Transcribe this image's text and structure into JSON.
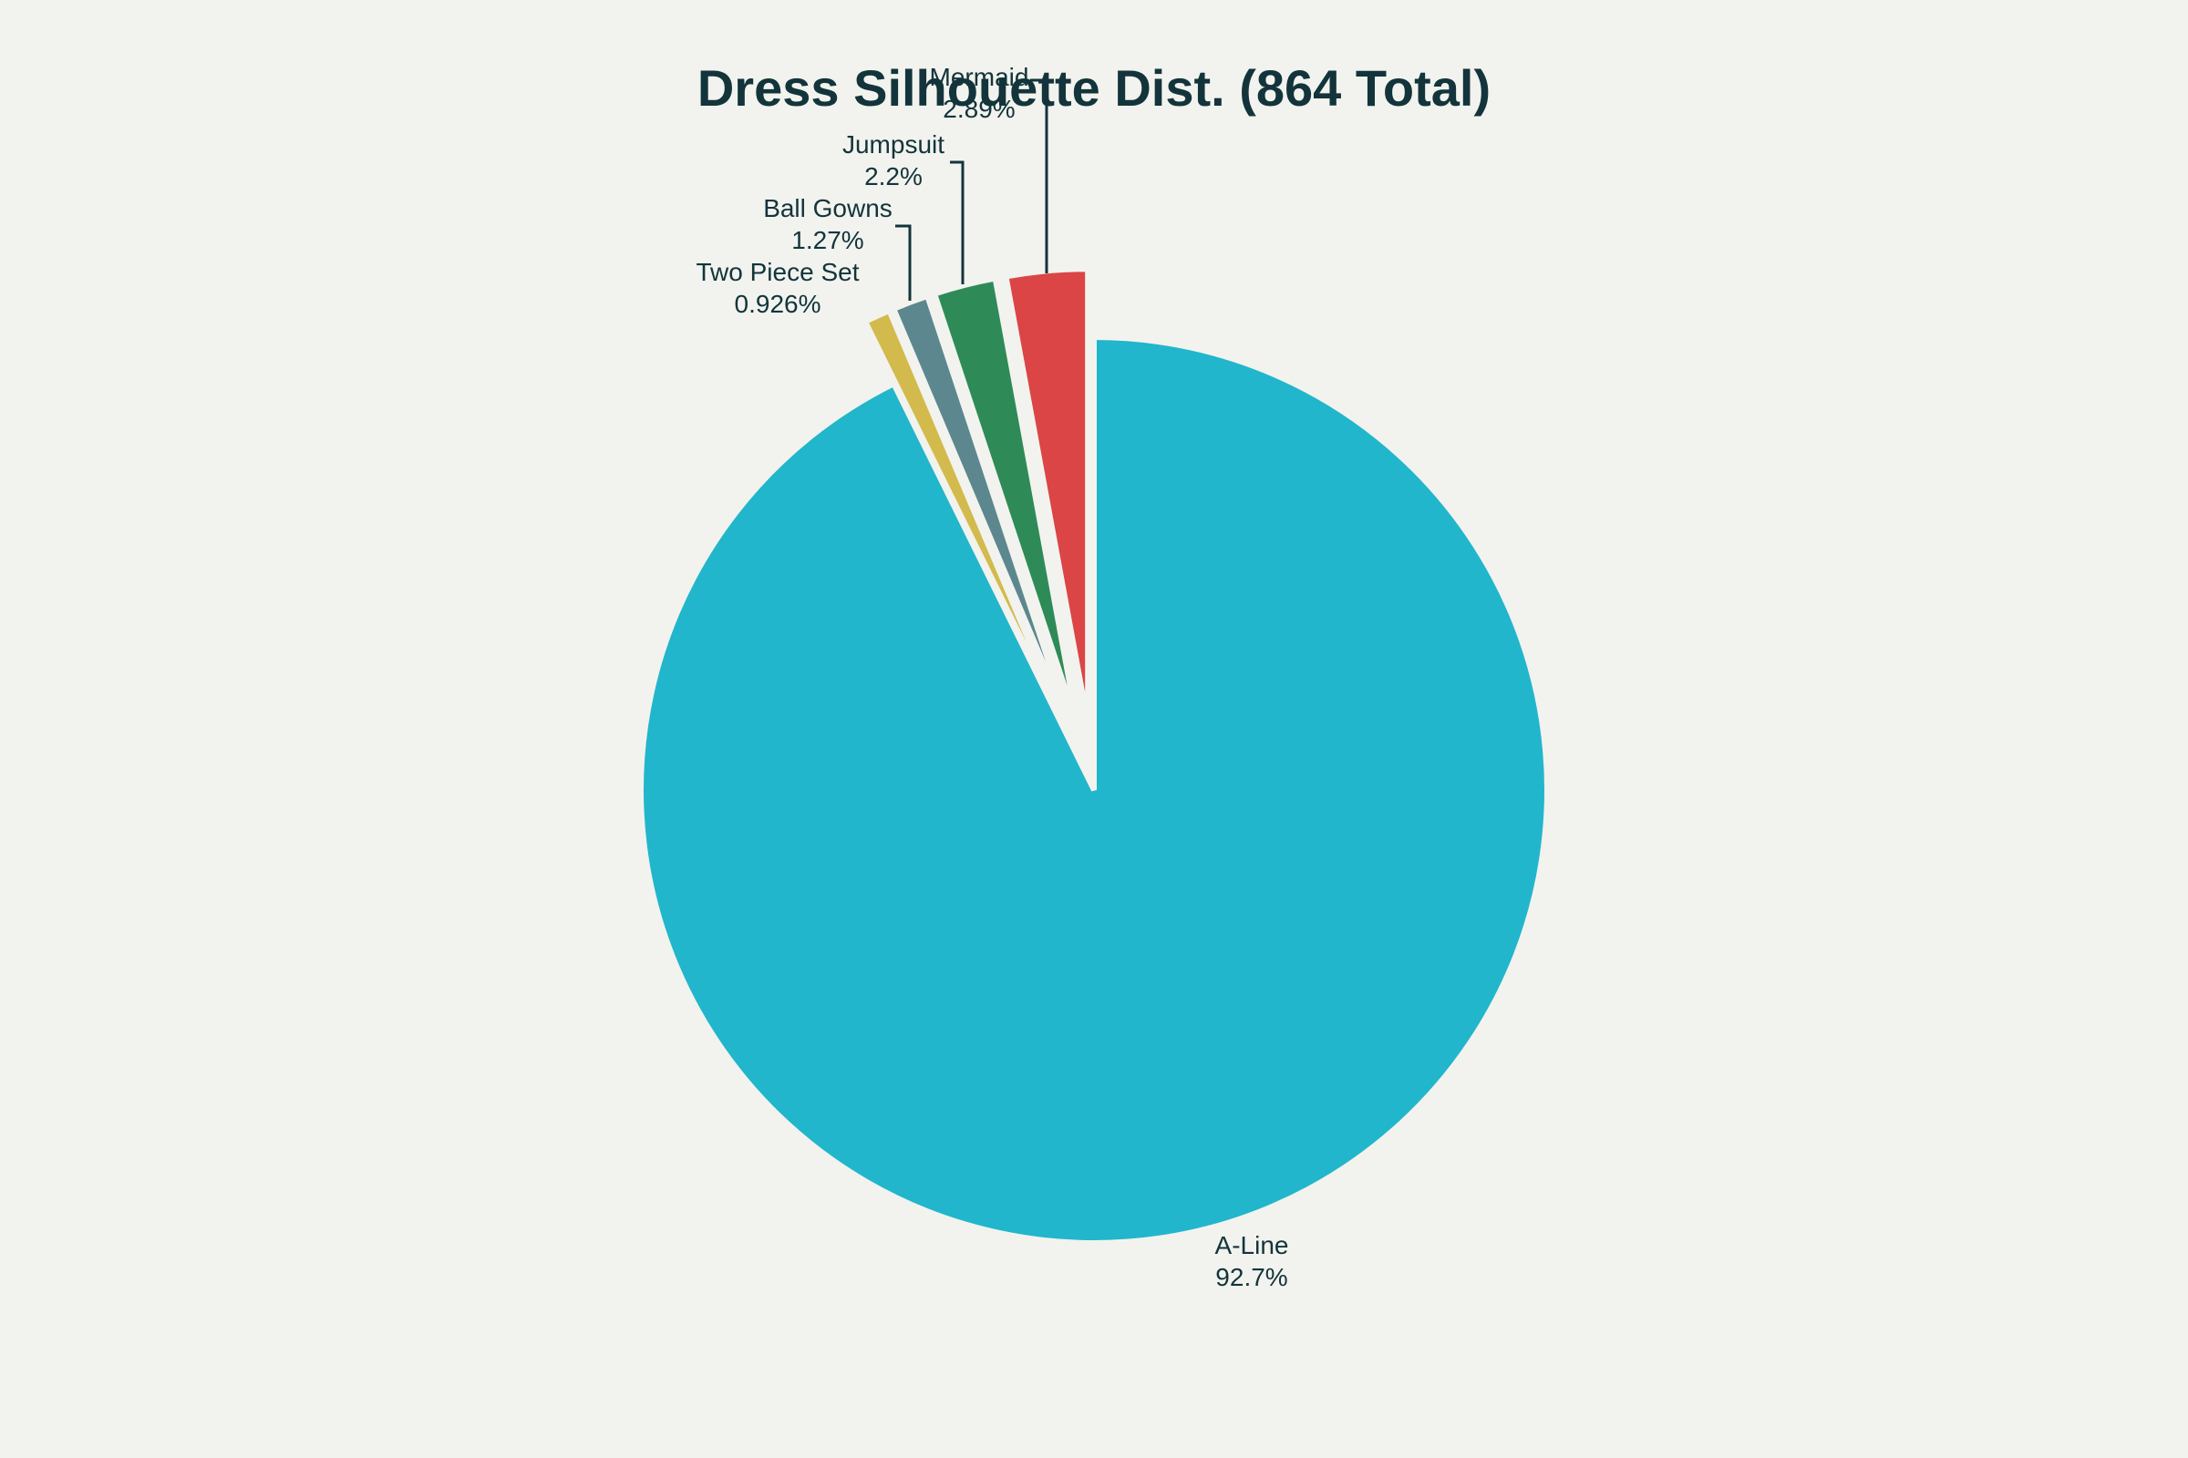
{
  "chart_data": {
    "type": "pie",
    "title": "Dress Silhouette Dist. (864 Total)",
    "slices": [
      {
        "label": "Mermaid",
        "value": 2.89,
        "display": "2.89%",
        "color": "#db4545"
      },
      {
        "label": "Jumpsuit",
        "value": 2.2,
        "display": "2.2%",
        "color": "#2e8b57"
      },
      {
        "label": "Ball Gowns",
        "value": 1.27,
        "display": "1.27%",
        "color": "#5d878f"
      },
      {
        "label": "Two Piece Set",
        "value": 0.926,
        "display": "0.926%",
        "color": "#d2ba4c"
      },
      {
        "label": "A-Line",
        "value": 92.7,
        "display": "92.7%",
        "color": "#21b6cc"
      }
    ],
    "start_angle": "12 o'clock",
    "direction": "counterclockwise",
    "legend": "none"
  }
}
